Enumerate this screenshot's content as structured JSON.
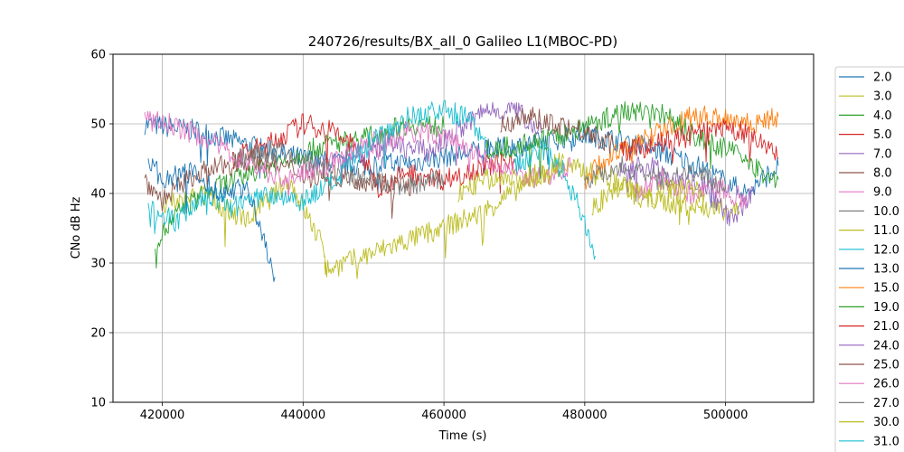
{
  "chart_data": {
    "type": "line",
    "title": "240726/results/BX_all_0 Galileo L1(MBOC-PD)",
    "xlabel": "Time (s)",
    "ylabel": "CNo dB Hz",
    "xlim": [
      413000,
      512500
    ],
    "ylim": [
      10,
      60
    ],
    "xticks": [
      420000,
      440000,
      460000,
      480000,
      500000
    ],
    "yticks": [
      10,
      20,
      30,
      40,
      50,
      60
    ],
    "grid": true,
    "legend_position": "right, outside plot (clipped at bottom)",
    "series": [
      {
        "name": "2.0",
        "color": "#1f77b4",
        "x": [
          417500,
          425000,
          432000,
          440000,
          448000,
          456000,
          464000,
          472000,
          480000,
          488000,
          496000,
          503000,
          507500
        ],
        "y": [
          50,
          49,
          47,
          45,
          44,
          44.5,
          46,
          47,
          48.5,
          47,
          44,
          40,
          44
        ]
      },
      {
        "name": "3.0",
        "color": "#bcbd22",
        "x": [
          420000,
          426000,
          432000,
          438000,
          443000,
          443200,
          465000,
          471000,
          477000,
          484000,
          490000,
          496000,
          502000
        ],
        "y": [
          38,
          40,
          36,
          42,
          32,
          29,
          37,
          41,
          44,
          42,
          39,
          38,
          37.5
        ]
      },
      {
        "name": "4.0",
        "color": "#2ca02c",
        "x": [
          419000,
          423000,
          428000,
          433000,
          438000,
          443000,
          449000,
          455000,
          460000
        ],
        "y": [
          33,
          38,
          41,
          43,
          45,
          47,
          48,
          50,
          49.5
        ]
      },
      {
        "name": "5.0",
        "color": "#d62728",
        "x": [
          430000,
          435000,
          440000,
          444000,
          447000,
          451000,
          455000,
          460000,
          466000,
          470000
        ],
        "y": [
          45,
          47,
          50,
          49,
          47,
          41,
          43,
          42,
          44,
          45
        ]
      },
      {
        "name": "7.0",
        "color": "#9467bd",
        "x": [
          445000,
          452000,
          458000,
          462000,
          466000,
          470000,
          474000
        ],
        "y": [
          45,
          47,
          46,
          49,
          52,
          52,
          49
        ]
      },
      {
        "name": "8.0",
        "color": "#8c564b",
        "x": [
          417500,
          420000,
          425000,
          433000,
          440000,
          448000,
          456000
        ],
        "y": [
          42,
          39,
          43,
          45,
          43,
          42,
          41
        ]
      },
      {
        "name": "9.0",
        "color": "#e377c2",
        "x": [
          417500,
          421000,
          426000,
          431000,
          437000,
          443000,
          449000,
          455000,
          461000,
          467000,
          473000,
          478000
        ],
        "y": [
          50.5,
          50,
          48,
          45,
          42,
          44,
          47,
          49,
          48,
          44,
          42,
          44
        ]
      },
      {
        "name": "10.0",
        "color": "#7f7f7f",
        "x": [
          430000,
          436000,
          442000,
          448000,
          454000,
          460000
        ],
        "y": [
          45,
          46,
          44,
          42,
          41,
          42
        ]
      },
      {
        "name": "11.0",
        "color": "#bcbd22",
        "x": [
          462000,
          466000,
          470000,
          474000,
          477000
        ],
        "y": [
          40,
          42,
          42,
          43,
          45
        ]
      },
      {
        "name": "12.0",
        "color": "#17becf",
        "x": [
          418000,
          422000,
          426000,
          430000,
          435000,
          440000,
          445000,
          450000,
          455000,
          460000,
          463000,
          466000
        ],
        "y": [
          38,
          36,
          40,
          38,
          40,
          39,
          42,
          48,
          51,
          52,
          51,
          48
        ]
      },
      {
        "name": "13.0",
        "color": "#1f77b4",
        "x": [
          418000,
          420000,
          424000,
          428000,
          432000,
          436000
        ],
        "y": [
          45,
          42,
          43,
          40,
          41,
          28
        ]
      },
      {
        "name": "15.0",
        "color": "#ff7f0e",
        "x": [
          480000,
          483000,
          487000,
          491000,
          495000,
          500000,
          504000,
          507500
        ],
        "y": [
          42,
          45,
          47,
          49,
          51,
          51,
          50,
          51
        ]
      },
      {
        "name": "19.0",
        "color": "#2ca02c",
        "x": [
          466000,
          471000,
          476000,
          481000,
          486000,
          491000,
          496000,
          501000,
          505000,
          507500
        ],
        "y": [
          46,
          47,
          48,
          50,
          52,
          51.5,
          48,
          46,
          43,
          42
        ]
      },
      {
        "name": "21.0",
        "color": "#d62728",
        "x": [
          485000,
          490000,
          494000,
          498000,
          502000,
          505000,
          507500
        ],
        "y": [
          46,
          47,
          48,
          49,
          49,
          47,
          45
        ]
      },
      {
        "name": "24.0",
        "color": "#9467bd",
        "x": [
          485000,
          489000,
          493000,
          497000,
          501000,
          504000
        ],
        "y": [
          43,
          44,
          42,
          41,
          36,
          40
        ]
      },
      {
        "name": "25.0",
        "color": "#8c564b",
        "x": [
          468000,
          472000,
          476000,
          480000,
          484000
        ],
        "y": [
          50,
          51,
          50,
          49,
          47
        ]
      },
      {
        "name": "26.0",
        "color": "#e377c2",
        "x": [
          487000,
          491000,
          495000,
          499000,
          503000
        ],
        "y": [
          40,
          42,
          40,
          41,
          39
        ]
      },
      {
        "name": "27.0",
        "color": "#7f7f7f",
        "x": [
          480000,
          485000,
          490000,
          495000,
          500000
        ],
        "y": [
          42,
          44,
          42,
          43,
          41
        ]
      },
      {
        "name": "30.0",
        "color": "#bcbd22",
        "x": [
          481000,
          485000,
          489000,
          493000,
          497000
        ],
        "y": [
          38,
          41,
          39,
          41,
          40
        ]
      },
      {
        "name": "31.0",
        "color": "#17becf",
        "x": [
          470000,
          474000,
          477000,
          480000,
          481500
        ],
        "y": [
          44,
          46,
          43,
          36,
          31
        ]
      }
    ]
  },
  "legend": {
    "items": [
      "2.0",
      "3.0",
      "4.0",
      "5.0",
      "7.0",
      "8.0",
      "9.0",
      "10.0",
      "11.0",
      "12.0",
      "13.0",
      "15.0",
      "19.0",
      "21.0",
      "24.0",
      "25.0",
      "26.0",
      "27.0",
      "30.0",
      "31.0"
    ]
  }
}
